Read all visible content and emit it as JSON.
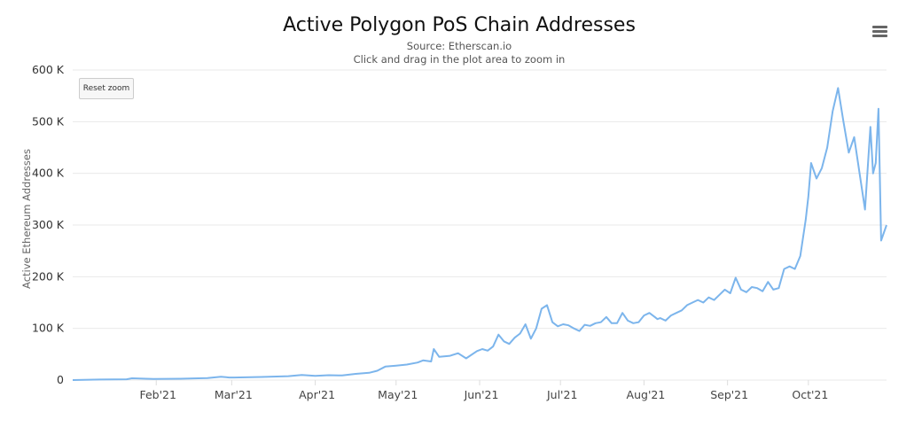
{
  "chart_data": {
    "type": "line",
    "title": "Active Polygon PoS Chain Addresses",
    "subtitle": "Source: Etherscan.io",
    "subtitle2": "Click and drag in the plot area to zoom in",
    "xlabel": "",
    "ylabel": "Active Ethereum Addresses",
    "ylim": [
      0,
      600000
    ],
    "y_ticks": [
      {
        "value": 0,
        "label": "0"
      },
      {
        "value": 100000,
        "label": "100 K"
      },
      {
        "value": 200000,
        "label": "200 K"
      },
      {
        "value": 300000,
        "label": "300 K"
      },
      {
        "value": 400000,
        "label": "400 K"
      },
      {
        "value": 500000,
        "label": "500 K"
      },
      {
        "value": 600000,
        "label": "600 K"
      }
    ],
    "x_unit": "days since 2021-01-01",
    "xlim": [
      0,
      302
    ],
    "x_ticks": [
      {
        "value": 31,
        "label": "Feb'21"
      },
      {
        "value": 59,
        "label": "Mar'21"
      },
      {
        "value": 90,
        "label": "Apr'21"
      },
      {
        "value": 120,
        "label": "May'21"
      },
      {
        "value": 151,
        "label": "Jun'21"
      },
      {
        "value": 181,
        "label": "Jul'21"
      },
      {
        "value": 212,
        "label": "Aug'21"
      },
      {
        "value": 243,
        "label": "Sep'21"
      },
      {
        "value": 273,
        "label": "Oct'21"
      }
    ],
    "grid": true,
    "legend": "none",
    "line_color": "#7cb5ec",
    "series": [
      {
        "name": "Active Ethereum Addresses",
        "x": [
          0,
          10,
          20,
          22,
          30,
          40,
          50,
          55,
          58,
          60,
          70,
          80,
          85,
          90,
          95,
          100,
          105,
          110,
          113,
          116,
          120,
          124,
          128,
          130,
          133,
          134,
          136,
          140,
          143,
          146,
          150,
          152,
          154,
          156,
          158,
          160,
          162,
          164,
          166,
          168,
          170,
          172,
          174,
          176,
          178,
          180,
          182,
          184,
          186,
          188,
          190,
          192,
          194,
          196,
          198,
          200,
          202,
          204,
          206,
          208,
          210,
          212,
          214,
          216,
          217,
          218,
          220,
          222,
          224,
          226,
          228,
          230,
          232,
          234,
          236,
          238,
          240,
          242,
          244,
          246,
          248,
          250,
          252,
          254,
          256,
          258,
          260,
          262,
          264,
          266,
          268,
          270,
          272,
          273,
          274,
          276,
          278,
          280,
          282,
          284,
          286,
          288,
          290,
          292,
          294,
          296,
          297,
          298,
          299,
          300,
          302
        ],
        "values": [
          0,
          1000,
          1500,
          3500,
          2000,
          2500,
          4000,
          6500,
          5000,
          5000,
          6000,
          7500,
          10000,
          8000,
          9500,
          9000,
          12000,
          14000,
          18000,
          26000,
          28000,
          30000,
          34000,
          38000,
          36000,
          60000,
          45000,
          47000,
          52000,
          42000,
          56000,
          60000,
          57000,
          65000,
          88000,
          75000,
          70000,
          82000,
          90000,
          108000,
          80000,
          100000,
          138000,
          145000,
          112000,
          104000,
          108000,
          106000,
          100000,
          95000,
          107000,
          105000,
          110000,
          112000,
          122000,
          110000,
          110000,
          130000,
          115000,
          110000,
          112000,
          125000,
          130000,
          122000,
          118000,
          120000,
          115000,
          125000,
          130000,
          135000,
          145000,
          150000,
          155000,
          150000,
          160000,
          155000,
          165000,
          175000,
          168000,
          198000,
          175000,
          170000,
          180000,
          178000,
          172000,
          190000,
          175000,
          178000,
          215000,
          220000,
          215000,
          240000,
          310000,
          355000,
          420000,
          390000,
          410000,
          450000,
          520000,
          565000,
          500000,
          440000,
          470000,
          400000,
          330000,
          490000,
          400000,
          420000,
          525000,
          270000,
          300000
        ]
      }
    ]
  },
  "controls": {
    "reset_zoom_label": "Reset zoom",
    "menu_icon": "hamburger-menu-icon"
  }
}
